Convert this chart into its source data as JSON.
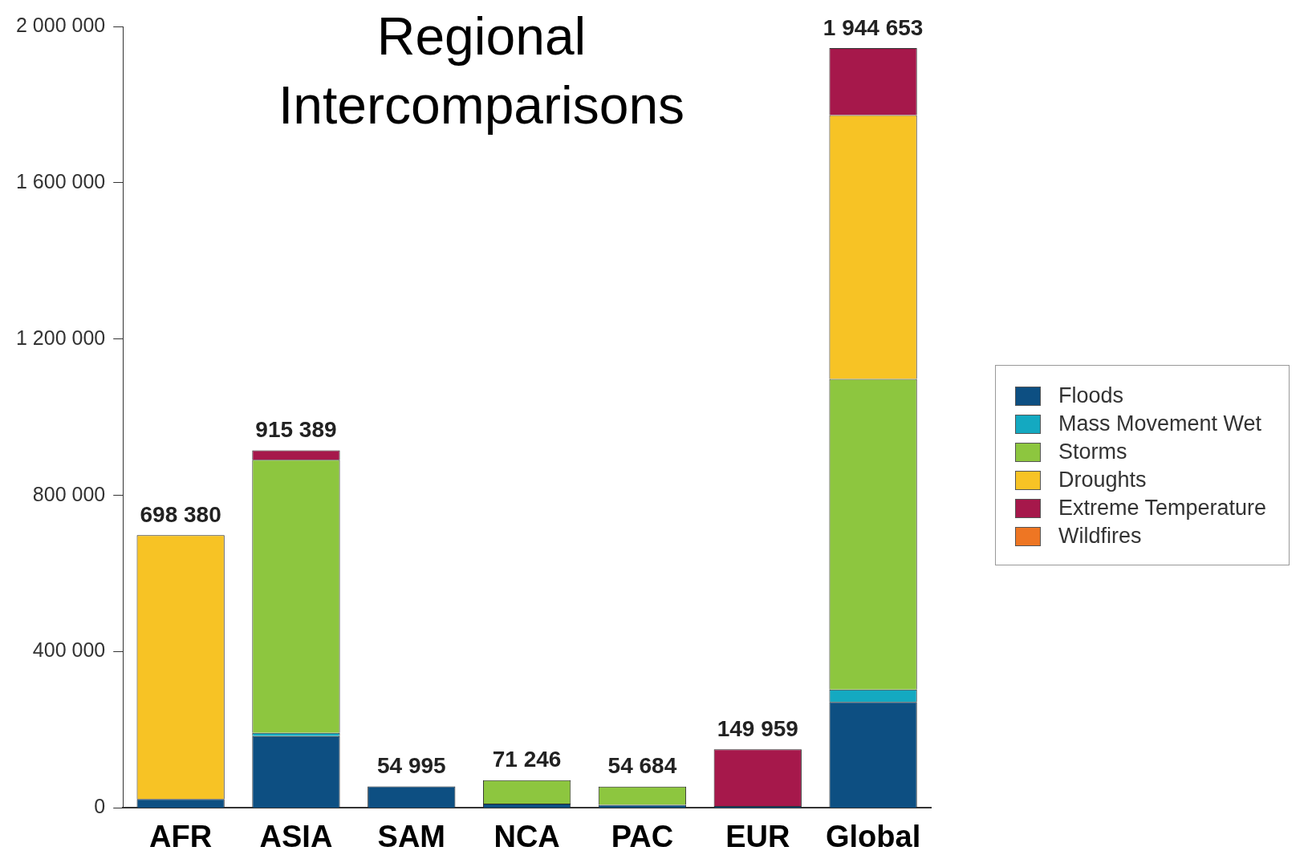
{
  "chart_data": {
    "type": "bar",
    "title": "Regional Intercomparisons",
    "stacked": true,
    "categories": [
      "AFR",
      "ASIA",
      "SAM",
      "NCA",
      "PAC",
      "EUR",
      "Global"
    ],
    "series": [
      {
        "name": "Floods",
        "color": "#0d4f82",
        "values": [
          23000,
          184000,
          54995,
          11000,
          8000,
          5000,
          271000
        ]
      },
      {
        "name": "Mass Movement Wet",
        "color": "#14a9c1",
        "values": [
          null,
          8000,
          null,
          null,
          null,
          null,
          32000
        ]
      },
      {
        "name": "Storms",
        "color": "#8dc63f",
        "values": [
          null,
          699000,
          null,
          60246,
          46684,
          null,
          795000
        ]
      },
      {
        "name": "Droughts",
        "color": "#f7c325",
        "values": [
          675380,
          null,
          null,
          null,
          null,
          null,
          675000
        ]
      },
      {
        "name": "Extreme Temperature",
        "color": "#a6184b",
        "values": [
          null,
          24389,
          null,
          null,
          null,
          144959,
          171653
        ]
      },
      {
        "name": "Wildfires",
        "color": "#ee7623",
        "values": [
          null,
          null,
          null,
          null,
          null,
          null,
          null
        ]
      }
    ],
    "totals": [
      "698 380",
      "915 389",
      "54 995",
      "71 246",
      "54 684",
      "149 959",
      "1 944 653"
    ],
    "ylim": [
      0,
      2000000
    ],
    "yticks": [
      {
        "value": 0,
        "label": "0"
      },
      {
        "value": 400000,
        "label": "400 000"
      },
      {
        "value": 800000,
        "label": "800 000"
      },
      {
        "value": 1200000,
        "label": "1 200 000"
      },
      {
        "value": 1600000,
        "label": "1 600 000"
      },
      {
        "value": 2000000,
        "label": "2 000 000"
      }
    ],
    "grid": false,
    "legend": "right"
  }
}
